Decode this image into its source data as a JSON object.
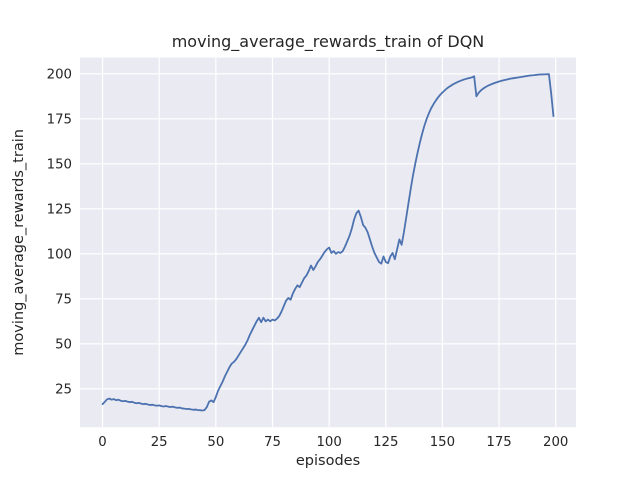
{
  "figure": {
    "title": "moving_average_rewards_train of DQN",
    "xlabel": "episodes",
    "ylabel": "moving_average_rewards_train"
  },
  "chart_data": {
    "type": "line",
    "title": "moving_average_rewards_train of DQN",
    "xlabel": "episodes",
    "ylabel": "moving_average_rewards_train",
    "legend": null,
    "grid": true,
    "style": "seaborn-darkgrid",
    "line_color": "#4c72b0",
    "axes_bg_color": "#eaeaf2",
    "grid_color": "#ffffff",
    "text_color": "#262626",
    "xticks": [
      0,
      25,
      50,
      75,
      100,
      125,
      150,
      175,
      200
    ],
    "yticks": [
      25,
      50,
      75,
      100,
      125,
      150,
      175,
      200
    ],
    "xlim": [
      -9.95,
      208.95
    ],
    "ylim": [
      3.7,
      209.0
    ],
    "x_start": 0,
    "x_step": 1,
    "values": [
      16.5,
      17.8,
      19.2,
      19.6,
      19.0,
      19.3,
      18.7,
      19.0,
      18.4,
      18.1,
      18.3,
      17.9,
      17.6,
      17.8,
      17.3,
      17.0,
      17.2,
      16.8,
      16.5,
      16.7,
      16.3,
      16.0,
      16.2,
      15.8,
      15.6,
      15.8,
      15.4,
      15.2,
      15.45,
      15.1,
      14.9,
      15.1,
      14.7,
      14.45,
      14.6,
      14.2,
      14.0,
      13.8,
      13.9,
      13.6,
      13.4,
      13.5,
      13.25,
      13.15,
      13.0,
      13.2,
      14.8,
      17.8,
      18.6,
      17.6,
      20.5,
      24.0,
      26.5,
      29.0,
      32.0,
      34.5,
      37.0,
      39.0,
      40.0,
      41.5,
      43.5,
      45.5,
      47.5,
      49.5,
      52.0,
      55.0,
      57.5,
      60.0,
      62.5,
      64.5,
      62.0,
      64.5,
      62.5,
      63.5,
      62.5,
      63.5,
      63.0,
      64.0,
      65.5,
      68.0,
      71.0,
      74.0,
      75.5,
      74.5,
      78.0,
      80.5,
      82.5,
      81.5,
      84.0,
      86.5,
      88.0,
      90.5,
      93.5,
      91.0,
      93.0,
      95.5,
      97.0,
      99.0,
      101.0,
      102.5,
      103.5,
      100.5,
      101.5,
      100.0,
      101.0,
      100.5,
      101.5,
      104.0,
      107.0,
      110.0,
      114.0,
      119.0,
      122.5,
      124.0,
      120.5,
      116.0,
      114.5,
      112.0,
      108.0,
      104.0,
      100.5,
      98.0,
      95.5,
      94.5,
      98.5,
      95.5,
      94.8,
      98.5,
      100.5,
      97.0,
      102.5,
      108.0,
      105.0,
      112.0,
      120.0,
      128.0,
      136.0,
      143.5,
      150.0,
      156.0,
      161.5,
      166.5,
      171.0,
      174.8,
      178.0,
      180.8,
      183.0,
      185.0,
      186.8,
      188.3,
      189.6,
      190.8,
      191.9,
      192.8,
      193.6,
      194.4,
      195.0,
      195.6,
      196.1,
      196.6,
      197.0,
      197.4,
      197.7,
      198.0,
      198.6,
      187.5,
      189.5,
      190.8,
      191.8,
      192.6,
      193.3,
      193.9,
      194.4,
      194.9,
      195.3,
      195.7,
      196.1,
      196.4,
      196.7,
      197.0,
      197.3,
      197.5,
      197.7,
      197.9,
      198.1,
      198.3,
      198.5,
      198.7,
      198.9,
      199.1,
      199.2,
      199.35,
      199.5,
      199.6,
      199.65,
      199.7,
      199.75,
      199.8,
      189.0,
      176.5
    ]
  }
}
